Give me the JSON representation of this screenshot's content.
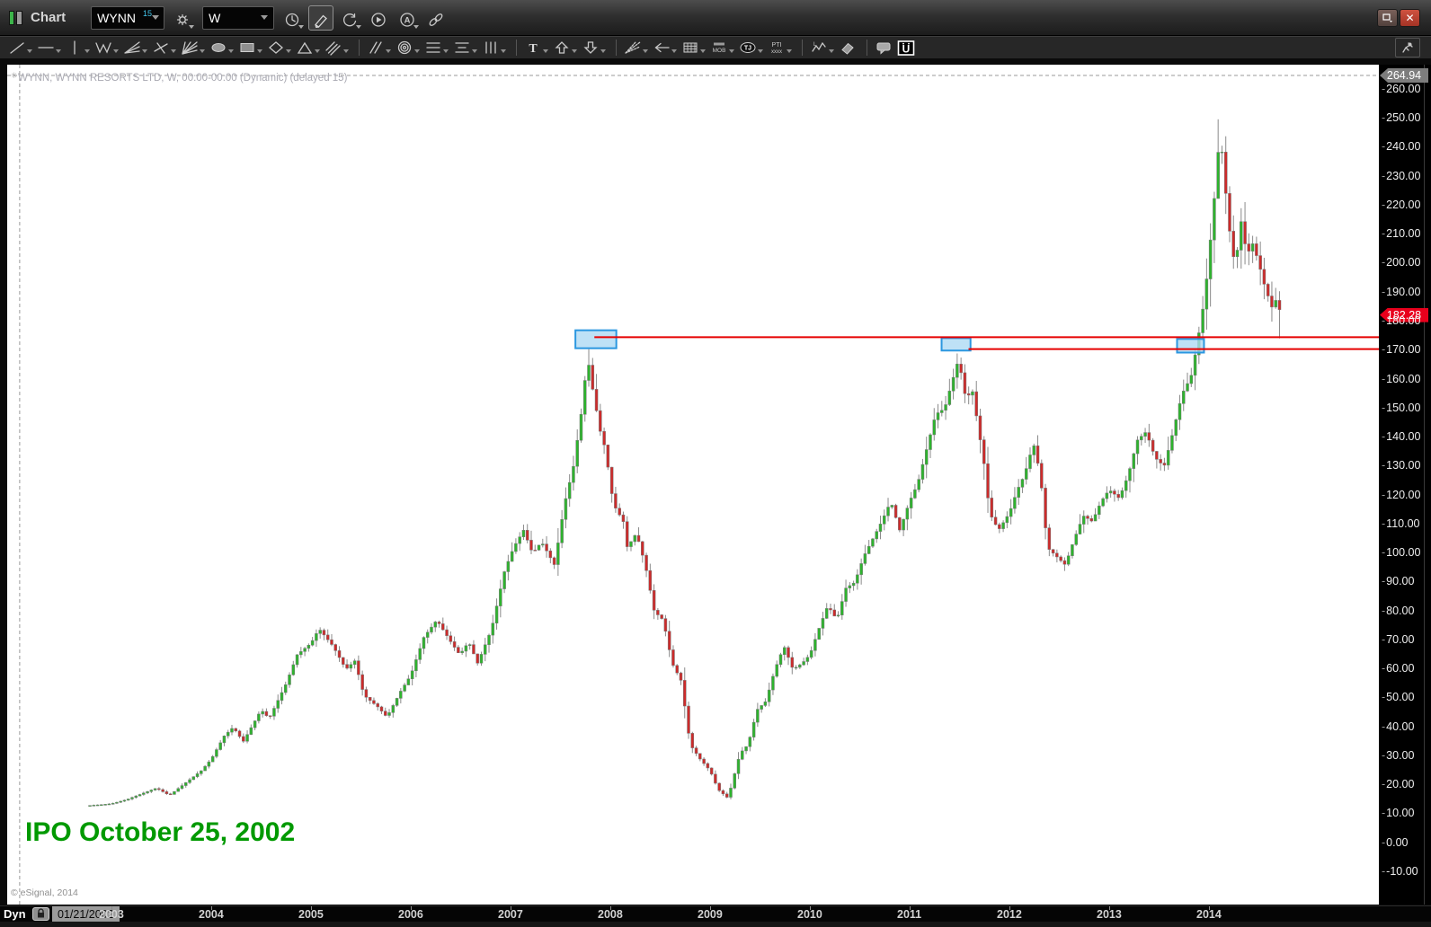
{
  "window": {
    "title": "Chart"
  },
  "titlebar": {
    "symbol": "WYNN",
    "symbol_badge": "15",
    "interval": "W",
    "buttons": [
      {
        "name": "gear",
        "dropdown": true
      },
      {
        "name": "clock",
        "dropdown": true
      },
      {
        "name": "pencil",
        "active": true
      },
      {
        "name": "refresh",
        "dropdown": true
      },
      {
        "name": "play"
      },
      {
        "name": "auto-a",
        "dropdown": true
      },
      {
        "name": "link"
      }
    ],
    "window_buttons": [
      {
        "name": "restore-window"
      },
      {
        "name": "close-window"
      }
    ]
  },
  "toolbar_draw": {
    "items": [
      {
        "name": "trend-line",
        "dropdown": true
      },
      {
        "name": "horizontal-line",
        "dropdown": true
      },
      {
        "name": "vertical-line",
        "dropdown": true
      },
      {
        "name": "zigzag-line",
        "dropdown": true
      },
      {
        "name": "fan-line",
        "dropdown": true
      },
      {
        "name": "cross-line",
        "dropdown": true
      },
      {
        "name": "multi-fan-line",
        "dropdown": true
      },
      {
        "name": "ellipse-tool",
        "dropdown": true
      },
      {
        "name": "rectangle-tool",
        "dropdown": true
      },
      {
        "name": "diamond-tool",
        "dropdown": true
      },
      {
        "name": "triangle-tool",
        "dropdown": true
      },
      {
        "name": "parallel-lines",
        "dropdown": true
      },
      {
        "divider": true
      },
      {
        "name": "slash-channel",
        "dropdown": true
      },
      {
        "name": "concentric-rings",
        "dropdown": true
      },
      {
        "name": "horizontal-levels",
        "dropdown": true
      },
      {
        "name": "fib-levels",
        "dropdown": true
      },
      {
        "name": "vertical-levels",
        "dropdown": true
      },
      {
        "divider": true
      },
      {
        "name": "text-tool",
        "dropdown": true
      },
      {
        "name": "up-arrow",
        "dropdown": true
      },
      {
        "name": "down-arrow",
        "dropdown": true
      },
      {
        "divider": true
      },
      {
        "name": "gann-fan",
        "dropdown": true
      },
      {
        "name": "retracement-arrow",
        "dropdown": true
      },
      {
        "name": "cycle-grid",
        "dropdown": true
      },
      {
        "name": "mob-tool",
        "dropdown": true
      },
      {
        "name": "tj-tool",
        "dropdown": true
      },
      {
        "name": "pti-tool",
        "dropdown": true
      },
      {
        "divider": true
      },
      {
        "name": "elliott-wave",
        "dropdown": true
      },
      {
        "name": "eraser"
      },
      {
        "divider": true
      },
      {
        "name": "note-tool"
      },
      {
        "name": "u-logo"
      }
    ],
    "pin": "pin"
  },
  "chart_data": {
    "type": "candlestick",
    "symbol": "WYNN",
    "company": "WYNN RESORTS LTD",
    "interval": "W",
    "title": "WYNN, WYNN RESORTS LTD, W, 00:00-00:00 (Dynamic) (delayed 15)",
    "session": "00:00-00:00 (Dynamic) (delayed 15)",
    "last_close": 182.28,
    "high_level": 264.94,
    "y_axis": {
      "min": -10,
      "max": 264.94,
      "tick_step": 10,
      "ticks": [
        "260.00",
        "250.00",
        "240.00",
        "230.00",
        "220.00",
        "210.00",
        "200.00",
        "190.00",
        "180.00",
        "170.00",
        "160.00",
        "150.00",
        "140.00",
        "130.00",
        "120.00",
        "110.00",
        "100.00",
        "90.00",
        "80.00",
        "70.00",
        "60.00",
        "50.00",
        "40.00",
        "30.00",
        "20.00",
        "10.00",
        "0.00",
        "-10.00"
      ]
    },
    "x_axis": {
      "start_date": "01/21/2002",
      "years": [
        2003,
        2004,
        2005,
        2006,
        2007,
        2008,
        2009,
        2010,
        2011,
        2012,
        2013,
        2014
      ]
    },
    "range": {
      "t_start": 2002.784,
      "t_end": 2014.72,
      "candles_per_year": 26
    },
    "keypoints": [
      [
        2002.78,
        13.0
      ],
      [
        2002.9,
        13.3
      ],
      [
        2003.0,
        13.6
      ],
      [
        2003.15,
        15.0
      ],
      [
        2003.3,
        17.0
      ],
      [
        2003.45,
        19.0
      ],
      [
        2003.58,
        16.5
      ],
      [
        2003.75,
        21.0
      ],
      [
        2003.9,
        25.0
      ],
      [
        2004.0,
        29.0
      ],
      [
        2004.13,
        37.0
      ],
      [
        2004.22,
        40.0
      ],
      [
        2004.32,
        35.0
      ],
      [
        2004.5,
        46.0
      ],
      [
        2004.58,
        43.0
      ],
      [
        2004.75,
        55.0
      ],
      [
        2004.86,
        65.0
      ],
      [
        2005.0,
        69.0
      ],
      [
        2005.08,
        74.0
      ],
      [
        2005.22,
        68.0
      ],
      [
        2005.35,
        60.0
      ],
      [
        2005.44,
        63.0
      ],
      [
        2005.53,
        51.0
      ],
      [
        2005.67,
        47.0
      ],
      [
        2005.76,
        43.5
      ],
      [
        2005.9,
        52.5
      ],
      [
        2006.0,
        58.0
      ],
      [
        2006.13,
        71.0
      ],
      [
        2006.26,
        77.0
      ],
      [
        2006.4,
        69.5
      ],
      [
        2006.49,
        65.0
      ],
      [
        2006.58,
        69.5
      ],
      [
        2006.67,
        62.0
      ],
      [
        2006.81,
        74.0
      ],
      [
        2006.94,
        94.0
      ],
      [
        2007.03,
        102.0
      ],
      [
        2007.13,
        108.0
      ],
      [
        2007.22,
        100.0
      ],
      [
        2007.31,
        104.0
      ],
      [
        2007.44,
        96.0
      ],
      [
        2007.54,
        117.0
      ],
      [
        2007.63,
        130.0
      ],
      [
        2007.72,
        151.0
      ],
      [
        2007.77,
        168.0
      ],
      [
        2007.83,
        155.0
      ],
      [
        2007.9,
        142.0
      ],
      [
        2007.95,
        136.0
      ],
      [
        2008.03,
        117.0
      ],
      [
        2008.13,
        111.0
      ],
      [
        2008.17,
        102.0
      ],
      [
        2008.26,
        107.0
      ],
      [
        2008.35,
        96.0
      ],
      [
        2008.44,
        80.0
      ],
      [
        2008.53,
        77.0
      ],
      [
        2008.62,
        62.0
      ],
      [
        2008.71,
        56.0
      ],
      [
        2008.8,
        34.0
      ],
      [
        2008.9,
        29.0
      ],
      [
        2009.0,
        25.0
      ],
      [
        2009.08,
        18.5
      ],
      [
        2009.18,
        15.5
      ],
      [
        2009.3,
        31.0
      ],
      [
        2009.38,
        34.0
      ],
      [
        2009.47,
        46.0
      ],
      [
        2009.56,
        49.0
      ],
      [
        2009.65,
        60.0
      ],
      [
        2009.74,
        68.0
      ],
      [
        2009.83,
        60.0
      ],
      [
        2009.92,
        62.0
      ],
      [
        2010.0,
        65.0
      ],
      [
        2010.09,
        74.0
      ],
      [
        2010.18,
        82.0
      ],
      [
        2010.27,
        77.0
      ],
      [
        2010.36,
        88.0
      ],
      [
        2010.45,
        90.0
      ],
      [
        2010.54,
        99.0
      ],
      [
        2010.63,
        105.0
      ],
      [
        2010.72,
        111.0
      ],
      [
        2010.81,
        118.0
      ],
      [
        2010.9,
        108.0
      ],
      [
        2011.0,
        118.0
      ],
      [
        2011.08,
        124.0
      ],
      [
        2011.17,
        136.0
      ],
      [
        2011.26,
        148.0
      ],
      [
        2011.35,
        150.0
      ],
      [
        2011.44,
        161.0
      ],
      [
        2011.49,
        167.0
      ],
      [
        2011.57,
        152.0
      ],
      [
        2011.62,
        158.0
      ],
      [
        2011.68,
        145.0
      ],
      [
        2011.75,
        130.0
      ],
      [
        2011.8,
        114.0
      ],
      [
        2011.89,
        108.0
      ],
      [
        2012.0,
        114.0
      ],
      [
        2012.08,
        122.0
      ],
      [
        2012.15,
        127.0
      ],
      [
        2012.24,
        138.0
      ],
      [
        2012.31,
        127.0
      ],
      [
        2012.38,
        102.0
      ],
      [
        2012.47,
        99.0
      ],
      [
        2012.56,
        96.0
      ],
      [
        2012.65,
        105.0
      ],
      [
        2012.74,
        113.0
      ],
      [
        2012.83,
        111.0
      ],
      [
        2012.92,
        118.0
      ],
      [
        2013.0,
        122.0
      ],
      [
        2013.1,
        119.0
      ],
      [
        2013.19,
        127.0
      ],
      [
        2013.28,
        139.0
      ],
      [
        2013.37,
        142.0
      ],
      [
        2013.46,
        133.0
      ],
      [
        2013.55,
        130.0
      ],
      [
        2013.64,
        142.0
      ],
      [
        2013.73,
        155.0
      ],
      [
        2013.82,
        161.0
      ],
      [
        2013.88,
        172.0
      ],
      [
        2013.96,
        189.0
      ],
      [
        2014.04,
        217.0
      ],
      [
        2014.11,
        246.0
      ],
      [
        2014.18,
        220.0
      ],
      [
        2014.22,
        207.0
      ],
      [
        2014.27,
        198.0
      ],
      [
        2014.31,
        217.0
      ],
      [
        2014.38,
        203.0
      ],
      [
        2014.44,
        207.0
      ],
      [
        2014.5,
        200.0
      ],
      [
        2014.56,
        192.0
      ],
      [
        2014.63,
        185.0
      ],
      [
        2014.68,
        188.0
      ],
      [
        2014.72,
        182.28
      ]
    ],
    "annotations": {
      "ipo_text": "IPO October 25, 2002",
      "boxes": [
        {
          "t0": 2007.65,
          "t1": 2008.06,
          "p0": 170.8,
          "p1": 177.0
        },
        {
          "t0": 2011.32,
          "t1": 2011.61,
          "p0": 170.0,
          "p1": 174.3
        },
        {
          "t0": 2013.68,
          "t1": 2013.95,
          "p0": 169.3,
          "p1": 174.0
        }
      ],
      "rays": [
        {
          "t": 2007.84,
          "price": 174.6
        },
        {
          "t": 2011.59,
          "price": 170.5
        }
      ],
      "dashed_hline_price": 264.94,
      "dashed_vline_t": 2002.08,
      "wick_overrides": [
        {
          "t": 2007.77,
          "high": 170.5
        },
        {
          "t": 2011.49,
          "high": 169.0
        },
        {
          "t": 2014.11,
          "high": 249.8
        },
        {
          "t": 2014.72,
          "low": 174.2
        }
      ]
    }
  },
  "price_axis": {
    "high_badge": "264.94",
    "last_badge": "182.28"
  },
  "bottom_bar": {
    "dyn_label": "Dyn",
    "date": "01/21/2002"
  },
  "copyright": "© eSignal, 2014",
  "colors": {
    "candle_up": "#2eb32e",
    "candle_down": "#cc2b2b",
    "wick": "#8a8a8a",
    "box_fill": "#aed9f4",
    "box_border": "#2b97e0",
    "ray": "#e60000",
    "last_badge_bg": "#e8001c",
    "high_badge_bg": "#7d7d7d",
    "ipo_text": "#009900",
    "chart_bg": "#ffffff",
    "axis_bg": "#000000"
  }
}
